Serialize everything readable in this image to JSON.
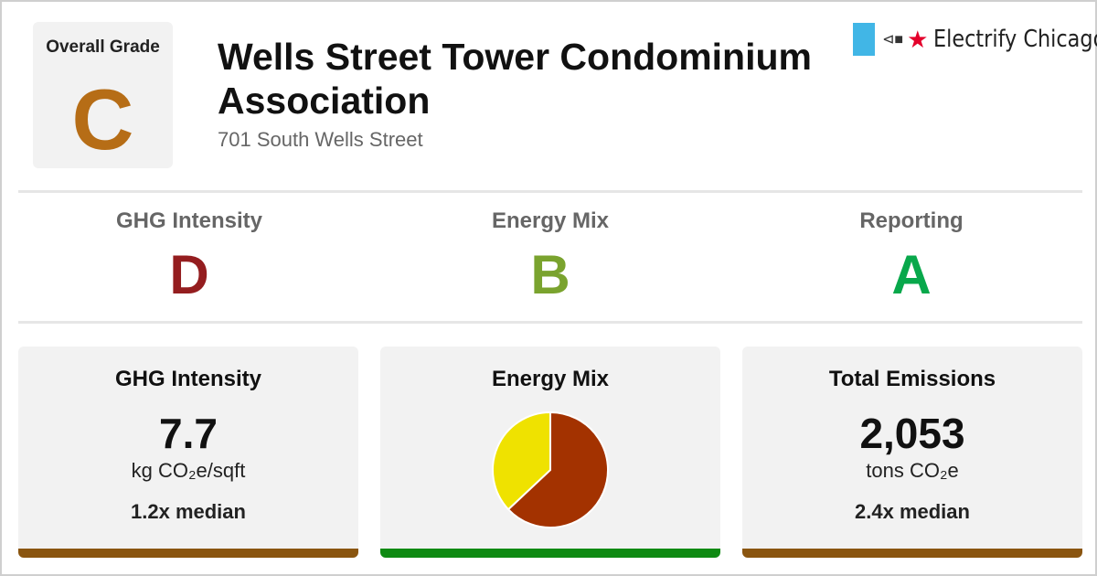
{
  "colors": {
    "grade_c": "#b66d16",
    "grade_d": "#941d1f",
    "grade_b": "#7aa32e",
    "grade_a": "#08a84b",
    "bar_brown": "#8a5510",
    "bar_green": "#0f8a13",
    "pie_brown": "#a33200",
    "pie_yellow": "#efe200"
  },
  "overall": {
    "label": "Overall Grade",
    "grade": "C"
  },
  "building": {
    "name": "Wells Street Tower Condominium Association",
    "address": "701 South Wells Street"
  },
  "logo": {
    "flag_icon": "chicago-flag-icon",
    "plug_icon": "plug-icon",
    "star_icon": "red-star-icon",
    "plug_glyph": "⊲■",
    "star_glyph": "★",
    "text": "Electrify Chicago"
  },
  "sub_grades": [
    {
      "label": "GHG Intensity",
      "grade": "D"
    },
    {
      "label": "Energy Mix",
      "grade": "B"
    },
    {
      "label": "Reporting",
      "grade": "A"
    }
  ],
  "cards": {
    "ghg": {
      "title": "GHG Intensity",
      "value": "7.7",
      "unit": "kg CO₂e/sqft",
      "median": "1.2x median"
    },
    "mix": {
      "title": "Energy Mix"
    },
    "emissions": {
      "title": "Total Emissions",
      "value": "2,053",
      "unit": "tons CO₂e",
      "median": "2.4x median"
    }
  },
  "chart_data": {
    "type": "pie",
    "values": [
      63,
      37
    ],
    "colors": [
      "#a33200",
      "#efe200"
    ],
    "start_angle_deg": 0
  }
}
